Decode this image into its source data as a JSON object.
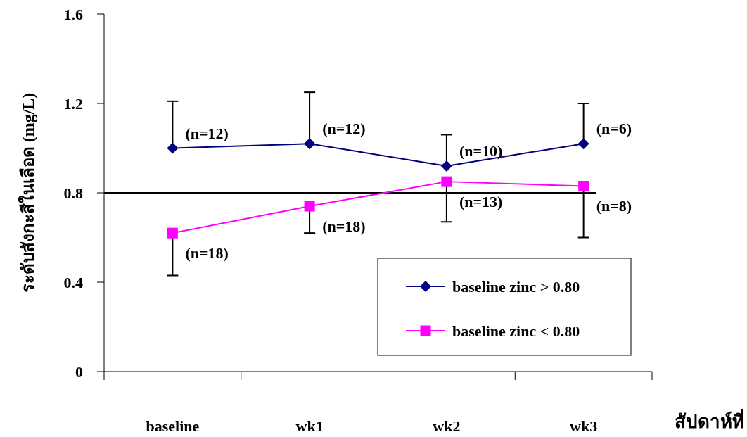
{
  "chart_data": {
    "type": "line",
    "ylabel": "ระดับสังกะสีในเลือด (mg/L)",
    "xlabel": "สัปดาห์ที่",
    "categories": [
      "baseline",
      "wk1",
      "wk2",
      "wk3"
    ],
    "ylim": [
      0,
      1.6
    ],
    "yticks": [
      0,
      0.4,
      0.8,
      1.2,
      1.6
    ],
    "grid": false,
    "legend": "bottom right",
    "line_style": "solid",
    "series": [
      {
        "name": "baseline zinc > 0.80",
        "color": "#000080",
        "marker": "diamond",
        "values": [
          1.0,
          1.02,
          0.92,
          1.02
        ],
        "errors": [
          [
            1.0,
            1.21
          ],
          [
            1.02,
            1.25
          ],
          [
            0.92,
            1.06
          ],
          [
            1.02,
            1.2
          ]
        ]
      },
      {
        "name": "baseline zinc < 0.80",
        "color": "#ff00ff",
        "marker": "square",
        "values": [
          0.62,
          0.74,
          0.85,
          0.83
        ],
        "errors": [
          [
            0.43,
            0.62
          ],
          [
            0.62,
            0.74
          ],
          [
            0.67,
            0.85
          ],
          [
            0.6,
            0.83
          ]
        ]
      }
    ],
    "ref_lines": [
      {
        "axis": "y",
        "value": 0.8,
        "color": "#000000"
      }
    ],
    "annotations": [
      {
        "text": "(n=12)",
        "x": "baseline",
        "y": 1.0
      },
      {
        "text": "(n=12)",
        "x": "wk1",
        "y": 1.02
      },
      {
        "text": "(n=10)",
        "x": "wk2",
        "y": 0.92
      },
      {
        "text": "(n=6)",
        "x": "wk3",
        "y": 1.02
      },
      {
        "text": "(n=18)",
        "x": "baseline",
        "y": 0.62
      },
      {
        "text": "(n=18)",
        "x": "wk1",
        "y": 0.74
      },
      {
        "text": "(n=13)",
        "x": "wk2",
        "y": 0.85
      },
      {
        "text": "(n=8)",
        "x": "wk3",
        "y": 0.83
      }
    ]
  }
}
